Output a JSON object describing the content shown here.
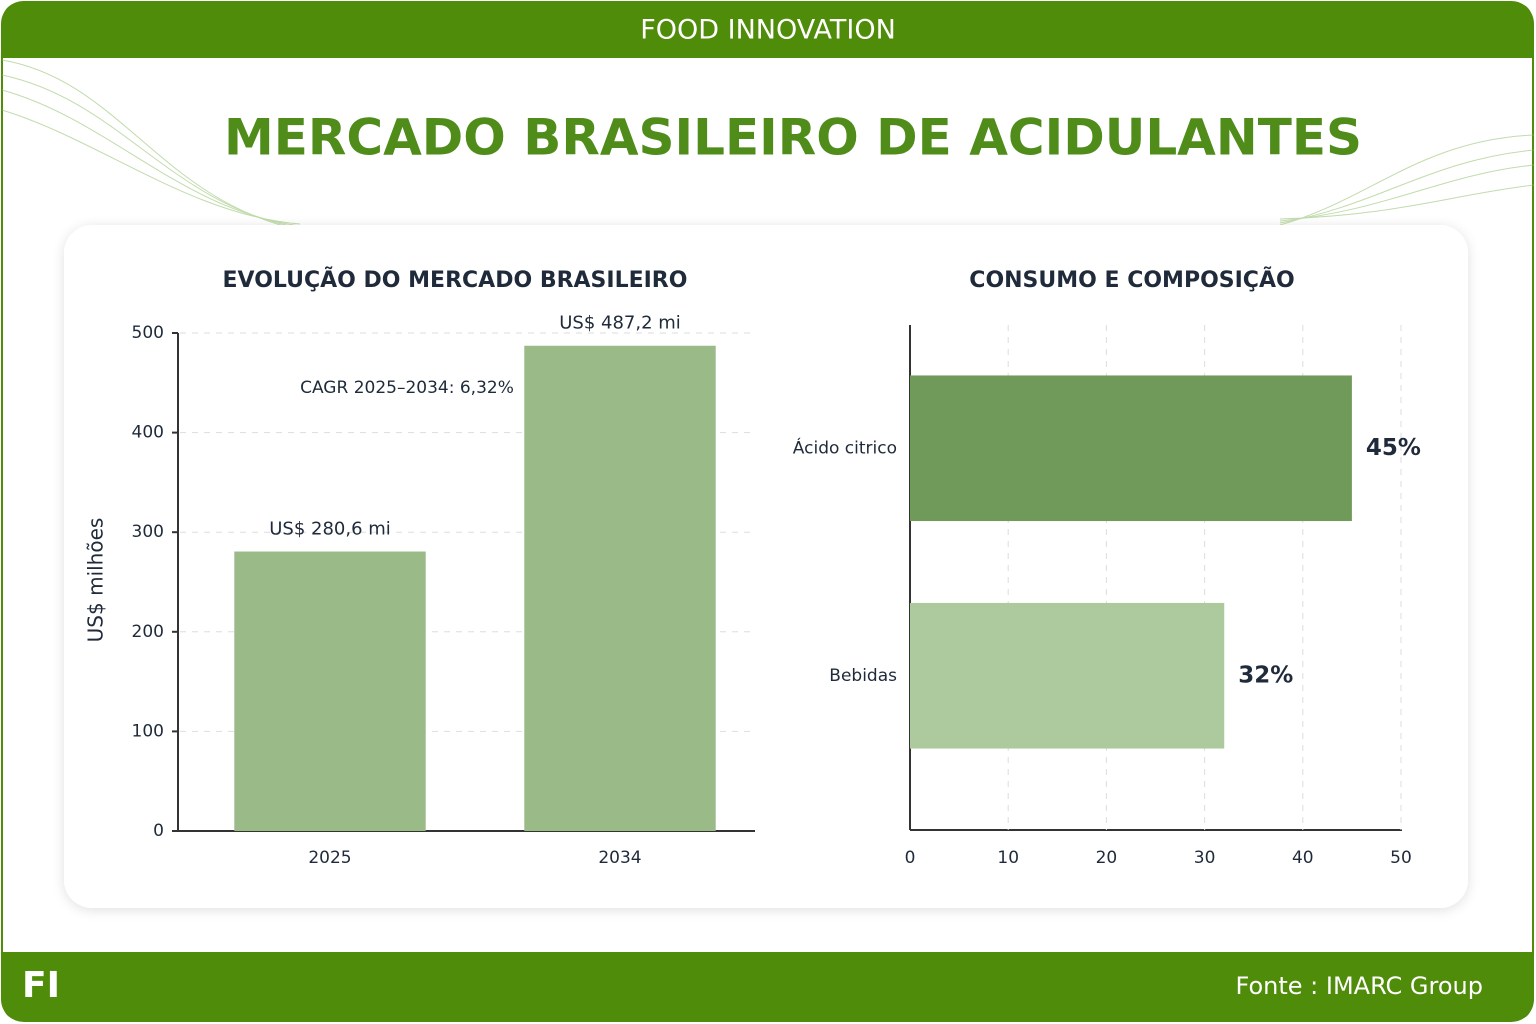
{
  "header": "FOOD INNOVATION",
  "title": "MERCADO BRASILEIRO DE ACIDULANTES",
  "chart_data": [
    {
      "type": "bar",
      "title": "EVOLUÇÃO DO MERCADO BRASILEIRO",
      "y_label": "US$ milhões",
      "categories": [
        "2025",
        "2034"
      ],
      "values": [
        280.6,
        487.2
      ],
      "value_labels": [
        "US$ 280,6 mi",
        "US$ 487,2 mi"
      ],
      "annotation": "CAGR 2025–2034: 6,32%",
      "color": "#9aba88",
      "ylim": [
        0,
        500
      ],
      "yticks": [
        0,
        100,
        200,
        300,
        400,
        500
      ],
      "grid": true
    },
    {
      "type": "barh",
      "title": "CONSUMO E COMPOSIÇÃO",
      "categories": [
        "Ácido citrico",
        "Bebidas"
      ],
      "values": [
        45,
        32
      ],
      "value_labels": [
        "45%",
        "32%"
      ],
      "colors": [
        "#6f9a5a",
        "#adc99e"
      ],
      "xlim": [
        0,
        50
      ],
      "xticks": [
        0,
        10,
        20,
        30,
        40,
        50
      ],
      "grid": true
    }
  ],
  "footer": {
    "logo": "FI",
    "source": "Fonte : IMARC Group"
  }
}
